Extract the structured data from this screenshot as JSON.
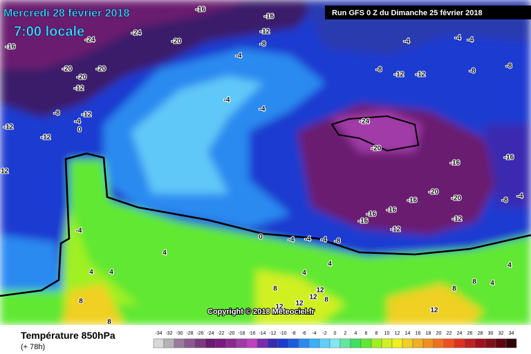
{
  "header": {
    "title": "Mercredi 28 février 2018",
    "time": "7:00 locale",
    "run": "Run GFS 0 Z du Dimanche 25 février 2018"
  },
  "footer": {
    "variable": "Température 850hPa",
    "lead": "(+ 78h)",
    "copyright": "Copyright © 2018 Meteociel.fr"
  },
  "scale": {
    "ticks": [
      -34,
      -32,
      -30,
      -28,
      -26,
      -24,
      -22,
      -20,
      -18,
      -16,
      -14,
      -12,
      -10,
      -8,
      -6,
      -4,
      -2,
      0,
      2,
      4,
      6,
      8,
      10,
      12,
      14,
      16,
      18,
      20,
      22,
      24,
      26,
      28,
      30,
      32,
      34
    ],
    "colors": [
      "#d8d8d8",
      "#b4b4b4",
      "#9c7aa0",
      "#8a5a90",
      "#7a3a80",
      "#6a1a70",
      "#7a1a80",
      "#8a2a90",
      "#a03aa8",
      "#c040c0",
      "#7a2ab0",
      "#3a2ab0",
      "#1a3ad0",
      "#1a5ae0",
      "#2a8af0",
      "#3ab0f8",
      "#60d0fa",
      "#80e8f0",
      "#60e8a0",
      "#40e060",
      "#60e830",
      "#a0f020",
      "#d0f020",
      "#f0f020",
      "#f0d020",
      "#f0b020",
      "#f09020",
      "#f07020",
      "#f05020",
      "#e03020",
      "#c02020",
      "#a01020",
      "#801018",
      "#600010",
      "#300008"
    ]
  },
  "map": {
    "labels": [
      -16,
      -16,
      -24,
      -24,
      -20,
      -20,
      -20,
      -20,
      -12,
      -12,
      -8,
      -12,
      -4,
      0,
      -12,
      -12,
      -12,
      -16,
      -12,
      -8,
      -4,
      -4,
      -4,
      -8,
      -12,
      -4,
      -4,
      -4,
      -8,
      -8,
      -24,
      -20,
      -16,
      -16,
      -20,
      -20,
      -16,
      -16,
      -16,
      -16,
      -12,
      -12,
      -8,
      -4,
      -8,
      -4,
      -4,
      -4,
      0,
      -4,
      4,
      4,
      4,
      8,
      8,
      4,
      4,
      8,
      12,
      12,
      8,
      12,
      12,
      12,
      8,
      8,
      4,
      4
    ]
  }
}
